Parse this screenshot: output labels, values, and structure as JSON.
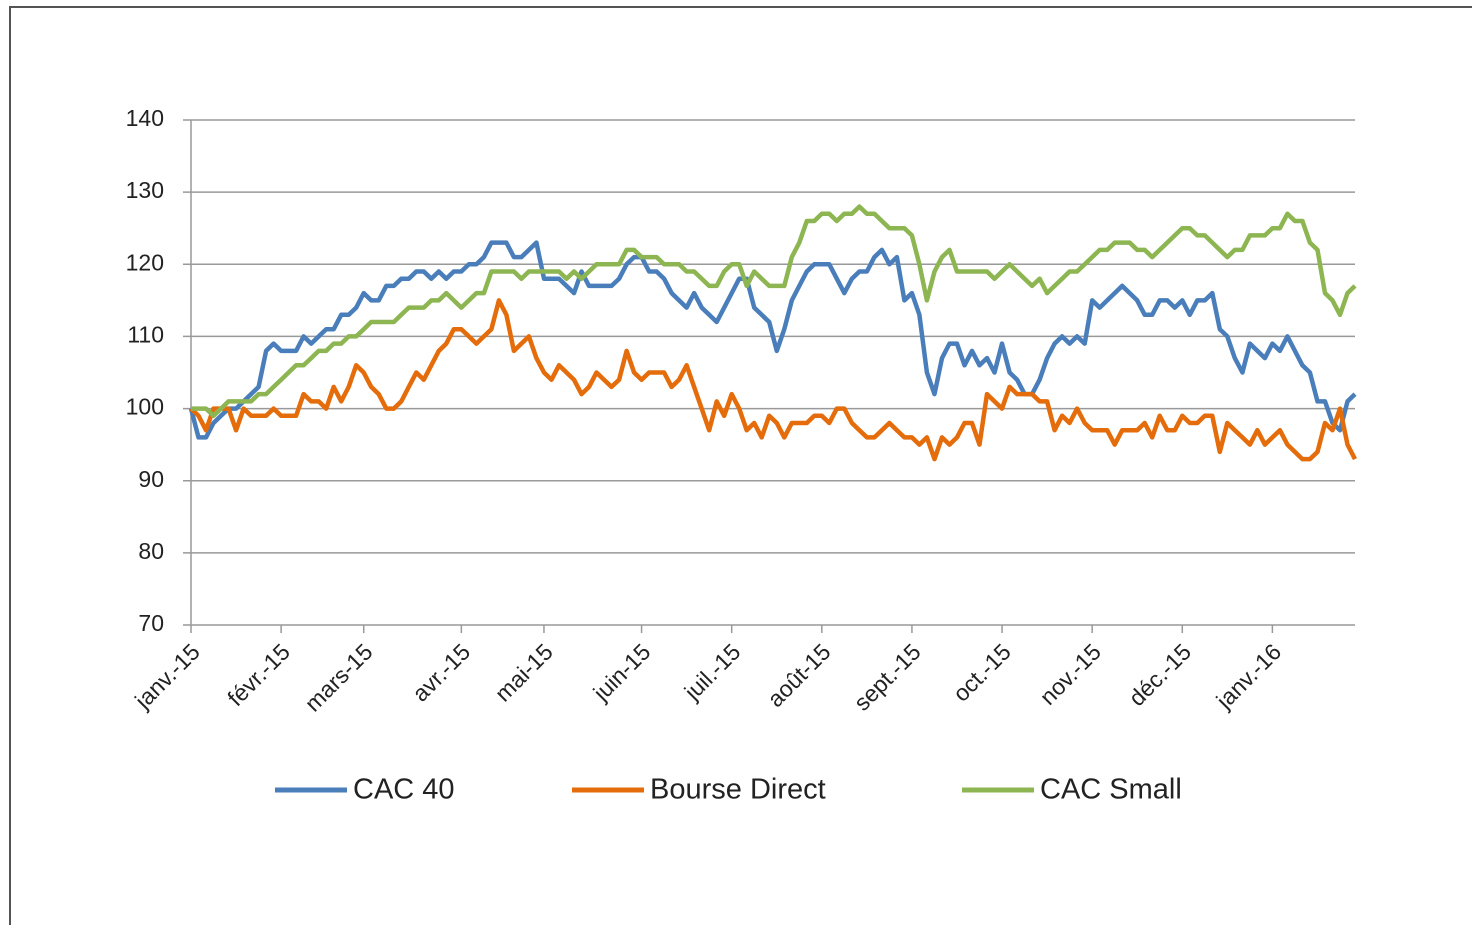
{
  "chart_data": {
    "type": "line",
    "categories": [
      "janv.-15",
      null,
      null,
      null,
      null,
      null,
      null,
      null,
      null,
      null,
      null,
      null,
      "févr.-15",
      null,
      null,
      null,
      null,
      null,
      null,
      null,
      null,
      null,
      null,
      "mars-15",
      null,
      null,
      null,
      null,
      null,
      null,
      null,
      null,
      null,
      null,
      null,
      null,
      "avr.-15",
      null,
      null,
      null,
      null,
      null,
      null,
      null,
      null,
      null,
      null,
      "mai-15",
      null,
      null,
      null,
      null,
      null,
      null,
      null,
      null,
      null,
      null,
      null,
      null,
      "juin-15",
      null,
      null,
      null,
      null,
      null,
      null,
      null,
      null,
      null,
      null,
      null,
      "juil.-15",
      null,
      null,
      null,
      null,
      null,
      null,
      null,
      null,
      null,
      null,
      null,
      "août-15",
      null,
      null,
      null,
      null,
      null,
      null,
      null,
      null,
      null,
      null,
      null,
      "sept.-15",
      null,
      null,
      null,
      null,
      null,
      null,
      null,
      null,
      null,
      null,
      null,
      "oct.-15",
      null,
      null,
      null,
      null,
      null,
      null,
      null,
      null,
      null,
      null,
      null,
      "nov.-15",
      null,
      null,
      null,
      null,
      null,
      null,
      null,
      null,
      null,
      null,
      null,
      "déc.-15",
      null,
      null,
      null,
      null,
      null,
      null,
      null,
      null,
      null,
      null,
      null,
      "janv.-16",
      null,
      null,
      null,
      null,
      null,
      null,
      null,
      null,
      null,
      null,
      null
    ],
    "series": [
      {
        "name": "CAC 40",
        "color": "#4a7ebb",
        "values": [
          100,
          96,
          96,
          98,
          99,
          100,
          100,
          101,
          102,
          103,
          108,
          109,
          108,
          108,
          108,
          110,
          109,
          110,
          111,
          111,
          113,
          113,
          114,
          116,
          115,
          115,
          117,
          117,
          118,
          118,
          119,
          119,
          118,
          119,
          118,
          119,
          119,
          120,
          120,
          121,
          123,
          123,
          123,
          121,
          121,
          122,
          123,
          118,
          118,
          118,
          117,
          116,
          119,
          117,
          117,
          117,
          117,
          118,
          120,
          121,
          121,
          119,
          119,
          118,
          116,
          115,
          114,
          116,
          114,
          113,
          112,
          114,
          116,
          118,
          118,
          114,
          113,
          112,
          108,
          111,
          115,
          117,
          119,
          120,
          120,
          120,
          118,
          116,
          118,
          119,
          119,
          121,
          122,
          120,
          121,
          115,
          116,
          113,
          105,
          102,
          107,
          109,
          109,
          106,
          108,
          106,
          107,
          105,
          109,
          105,
          104,
          102,
          102,
          104,
          107,
          109,
          110,
          109,
          110,
          109,
          115,
          114,
          115,
          116,
          117,
          116,
          115,
          113,
          113,
          115,
          115,
          114,
          115,
          113,
          115,
          115,
          116,
          111,
          110,
          107,
          105,
          109,
          108,
          107,
          109,
          108,
          110,
          108,
          106,
          105,
          101,
          101,
          98,
          97,
          101,
          102
        ]
      },
      {
        "name": "Bourse Direct",
        "color": "#e46c0a",
        "values": [
          100,
          99,
          97,
          100,
          100,
          100,
          97,
          100,
          99,
          99,
          99,
          100,
          99,
          99,
          99,
          102,
          101,
          101,
          100,
          103,
          101,
          103,
          106,
          105,
          103,
          102,
          100,
          100,
          101,
          103,
          105,
          104,
          106,
          108,
          109,
          111,
          111,
          110,
          109,
          110,
          111,
          115,
          113,
          108,
          109,
          110,
          107,
          105,
          104,
          106,
          105,
          104,
          102,
          103,
          105,
          104,
          103,
          104,
          108,
          105,
          104,
          105,
          105,
          105,
          103,
          104,
          106,
          103,
          100,
          97,
          101,
          99,
          102,
          100,
          97,
          98,
          96,
          99,
          98,
          96,
          98,
          98,
          98,
          99,
          99,
          98,
          100,
          100,
          98,
          97,
          96,
          96,
          97,
          98,
          97,
          96,
          96,
          95,
          96,
          93,
          96,
          95,
          96,
          98,
          98,
          95,
          102,
          101,
          100,
          103,
          102,
          102,
          102,
          101,
          101,
          97,
          99,
          98,
          100,
          98,
          97,
          97,
          97,
          95,
          97,
          97,
          97,
          98,
          96,
          99,
          97,
          97,
          99,
          98,
          98,
          99,
          99,
          94,
          98,
          97,
          96,
          95,
          97,
          95,
          96,
          97,
          95,
          94,
          93,
          93,
          94,
          98,
          97,
          100,
          95,
          93
        ]
      },
      {
        "name": "CAC Small",
        "color": "#8db652",
        "values": [
          100,
          100,
          100,
          99,
          100,
          101,
          101,
          101,
          101,
          102,
          102,
          103,
          104,
          105,
          106,
          106,
          107,
          108,
          108,
          109,
          109,
          110,
          110,
          111,
          112,
          112,
          112,
          112,
          113,
          114,
          114,
          114,
          115,
          115,
          116,
          115,
          114,
          115,
          116,
          116,
          119,
          119,
          119,
          119,
          118,
          119,
          119,
          119,
          119,
          119,
          118,
          119,
          118,
          119,
          120,
          120,
          120,
          120,
          122,
          122,
          121,
          121,
          121,
          120,
          120,
          120,
          119,
          119,
          118,
          117,
          117,
          119,
          120,
          120,
          117,
          119,
          118,
          117,
          117,
          117,
          121,
          123,
          126,
          126,
          127,
          127,
          126,
          127,
          127,
          128,
          127,
          127,
          126,
          125,
          125,
          125,
          124,
          120,
          115,
          119,
          121,
          122,
          119,
          119,
          119,
          119,
          119,
          118,
          119,
          120,
          119,
          118,
          117,
          118,
          116,
          117,
          118,
          119,
          119,
          120,
          121,
          122,
          122,
          123,
          123,
          123,
          122,
          122,
          121,
          122,
          123,
          124,
          125,
          125,
          124,
          124,
          123,
          122,
          121,
          122,
          122,
          124,
          124,
          124,
          125,
          125,
          127,
          126,
          126,
          123,
          122,
          116,
          115,
          113,
          116,
          117
        ]
      }
    ],
    "ylim": [
      70,
      140
    ],
    "yticks": [
      70,
      80,
      90,
      100,
      110,
      120,
      130,
      140
    ],
    "grid": true,
    "legend": "bottom"
  }
}
